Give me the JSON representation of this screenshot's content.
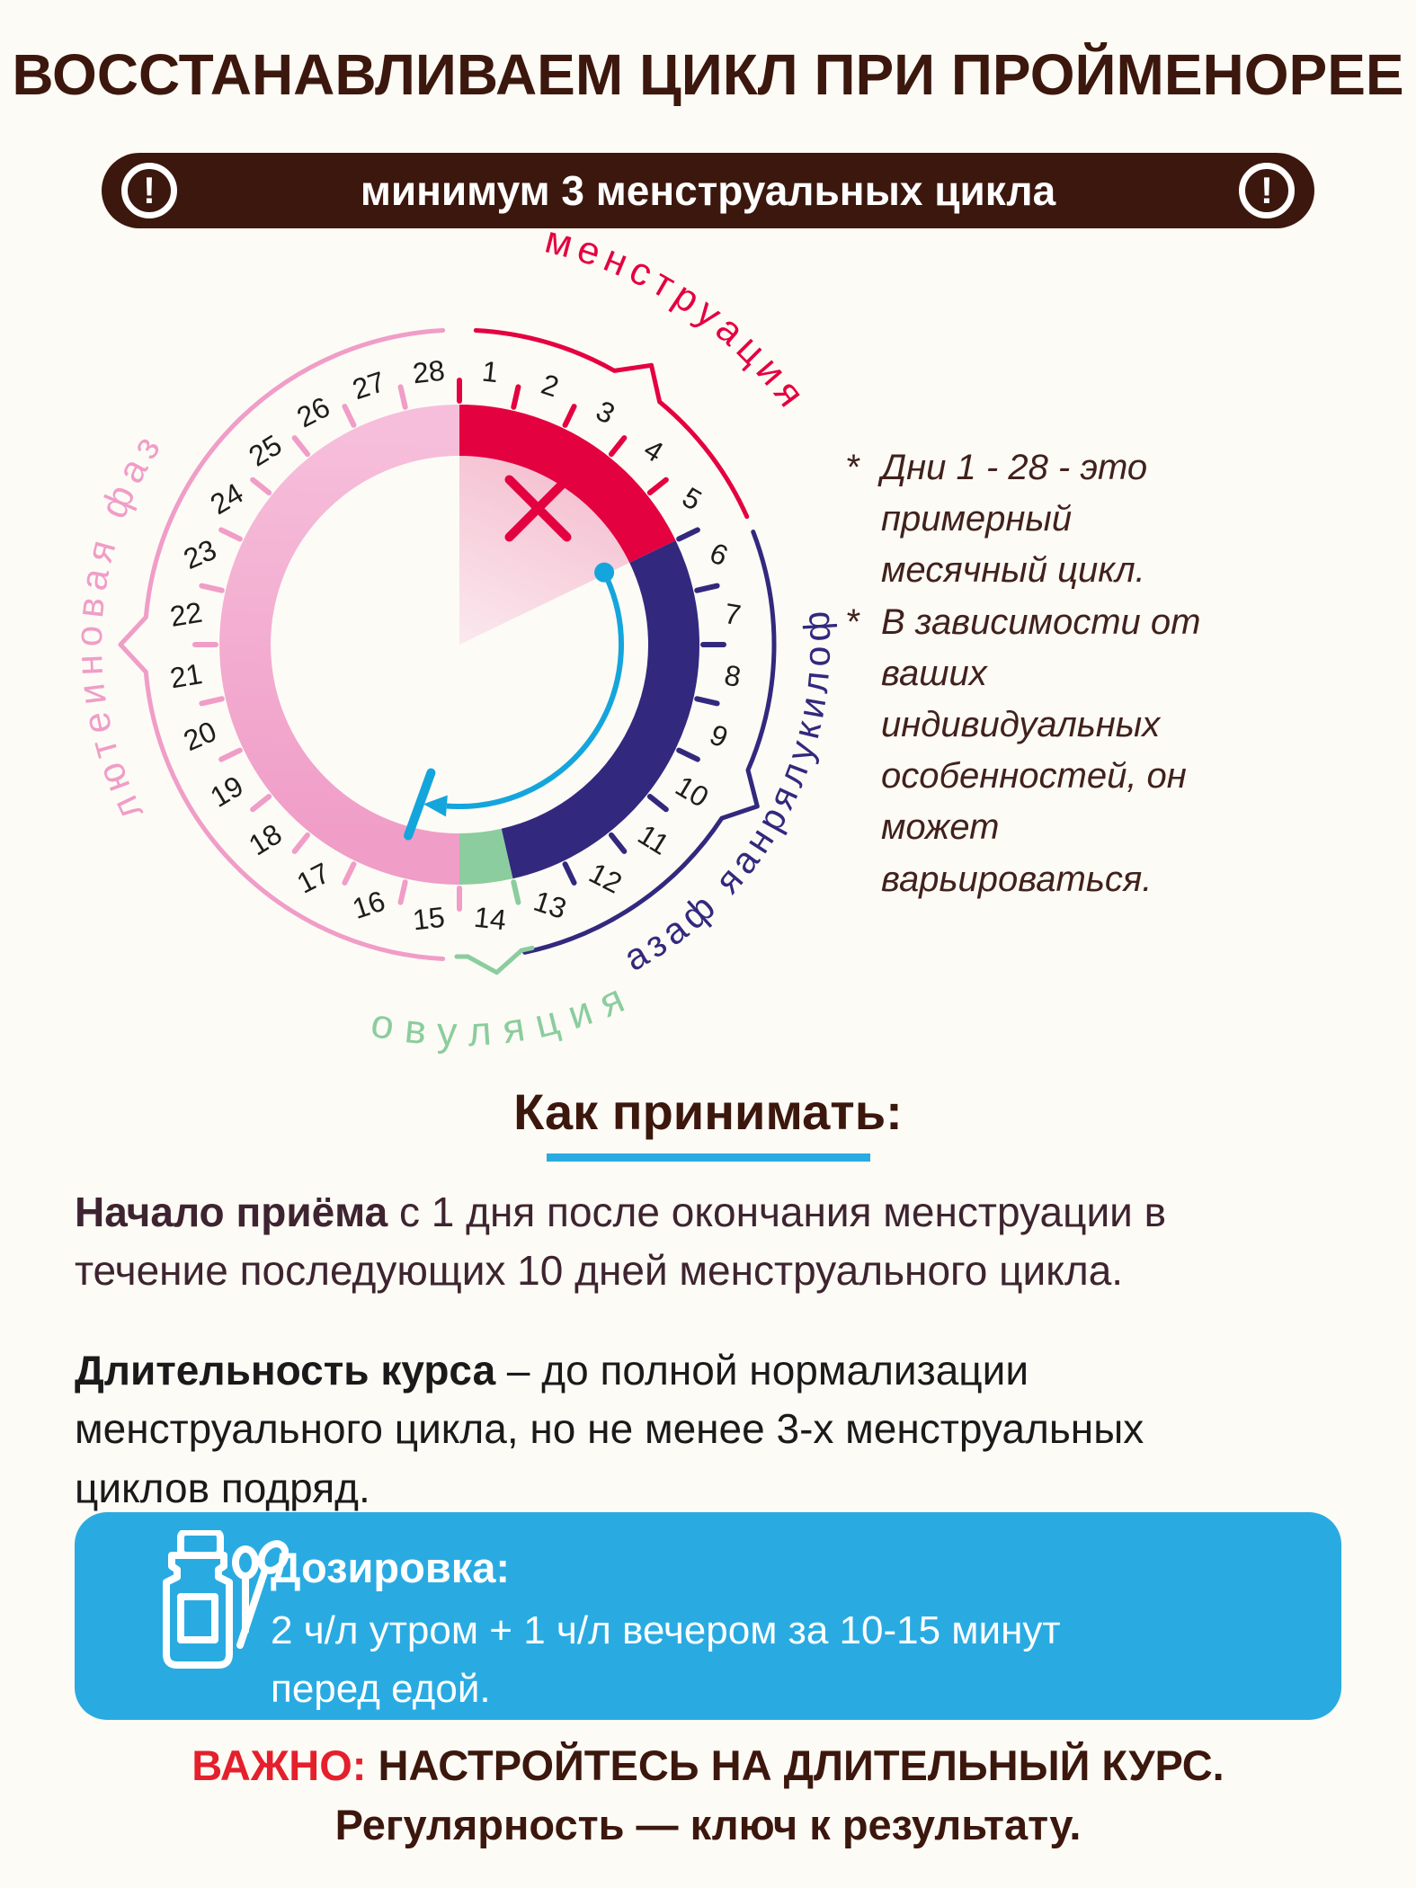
{
  "page": {
    "bg": "#FDFBF6"
  },
  "header": {
    "title": "ВОССТАНАВЛИВАЕМ ЦИКЛ ПРИ ПРОЙМЕНОРЕЕ",
    "title_color": "#3C170D"
  },
  "banner": {
    "text": "минимум 3 менструальных цикла",
    "bg": "#3C170D",
    "text_color": "#FFFFFF",
    "exclamation": "!"
  },
  "chart_data": {
    "type": "circular-cycle-diagram",
    "days_total": 28,
    "phases": [
      {
        "label": "менструация",
        "days": [
          1,
          5
        ],
        "color": "#E40140"
      },
      {
        "label": "фоликулярная фаза",
        "days": [
          6,
          13
        ],
        "color": "#32297E"
      },
      {
        "label": "овуляция",
        "days": [
          14,
          14
        ],
        "color": "#8BCD9E"
      },
      {
        "label": "лютеиновая фаза",
        "days": [
          15,
          28
        ],
        "color": "#F09DC7",
        "color_end": "#F6BEDA"
      }
    ],
    "number_color": "#1D1D1B",
    "no_intake_marker": {
      "symbol": "×",
      "days": [
        1,
        5
      ],
      "color": "#E40140",
      "wedge_color": "#F5C3D3"
    },
    "intake_arrow": {
      "from_day": 6,
      "to_day": 15,
      "color": "#14A5DC"
    }
  },
  "notes": {
    "bullet": "*",
    "color": "#41211C",
    "items": [
      "Дни 1 - 28 - это примерный месячный цикл.",
      "В зависимости от ваших индивидуальных особенностей, он может варьироваться."
    ]
  },
  "how_to_take": {
    "heading": "Как принимать:",
    "heading_color": "#3C170D",
    "underline_color": "#29ABE2",
    "p1": {
      "lead": "Начало приёма",
      "rest": " с 1 дня после окончания менструации в течение последующих 10 дней менструального цикла."
    },
    "p2": {
      "lead": "Длительность курса",
      "rest": " – до полной нормализации менструального цикла, но не менее 3-х менструальных циклов подряд."
    }
  },
  "dosage": {
    "box_color": "#29ABE2",
    "icon": "jar-and-spoons-icon",
    "title": "Дозировка:",
    "line1": "2 ч/л утром + 1 ч/л вечером за 10-15 минут",
    "line2": "перед едой."
  },
  "footer": {
    "important_label": "ВАЖНО:",
    "important_color": "#E4202C",
    "line1_rest": " НАСТРОЙТЕСЬ НА ДЛИТЕЛЬНЫЙ КУРС.",
    "line2": "Регулярность — ключ к результату.",
    "text_color": "#3C170D"
  }
}
